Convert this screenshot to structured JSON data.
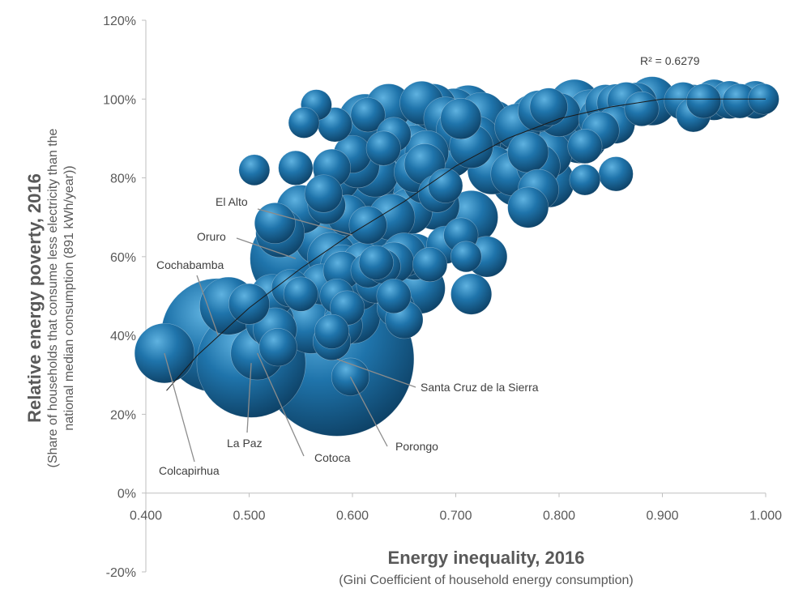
{
  "chart_data": {
    "type": "scatter",
    "subtype": "bubble",
    "xlabel": "Energy inequality, 2016",
    "xlabel_sub": "(Gini Coefficient of household energy consumption)",
    "ylabel": "Relative energy poverty, 2016",
    "ylabel_sub_line1": "(Share of households that consume less electricity than the",
    "ylabel_sub_line2": "national median consumption (891 kWh/year))",
    "xlim": [
      0.4,
      1.0
    ],
    "ylim": [
      -0.2,
      1.2
    ],
    "xticks": [
      0.4,
      0.5,
      0.6,
      0.7,
      0.8,
      0.9,
      1.0
    ],
    "xtick_labels": [
      "0.400",
      "0.500",
      "0.600",
      "0.700",
      "0.800",
      "0.900",
      "1.000"
    ],
    "yticks": [
      -0.2,
      0.0,
      0.2,
      0.4,
      0.6,
      0.8,
      1.0,
      1.2
    ],
    "ytick_labels": [
      "-20%",
      "0%",
      "20%",
      "40%",
      "60%",
      "80%",
      "100%",
      "120%"
    ],
    "grid": false,
    "legend": "none",
    "bubble_color": "#1f6fa3",
    "trendline": {
      "type": "polynomial",
      "r_squared_label": "R² = 0.6279",
      "points": [
        [
          0.42,
          0.26
        ],
        [
          0.45,
          0.35
        ],
        [
          0.5,
          0.47
        ],
        [
          0.55,
          0.57
        ],
        [
          0.6,
          0.66
        ],
        [
          0.65,
          0.74
        ],
        [
          0.7,
          0.83
        ],
        [
          0.75,
          0.9
        ],
        [
          0.8,
          0.95
        ],
        [
          0.85,
          0.98
        ],
        [
          0.9,
          1.0
        ],
        [
          0.95,
          1.0
        ],
        [
          1.0,
          1.0
        ]
      ]
    },
    "labeled_points": [
      {
        "name": "Santa Cruz de la Sierra",
        "x": 0.585,
        "y": 0.34,
        "size": 1.0
      },
      {
        "name": "La Paz",
        "x": 0.502,
        "y": 0.33,
        "size": 0.5
      },
      {
        "name": "Cochabamba",
        "x": 0.47,
        "y": 0.4,
        "size": 0.55
      },
      {
        "name": "El Alto",
        "x": 0.6,
        "y": 0.655,
        "size": 0.44
      },
      {
        "name": "Oruro",
        "x": 0.545,
        "y": 0.595,
        "size": 0.35
      },
      {
        "name": "Cotoca",
        "x": 0.508,
        "y": 0.355,
        "size": 0.12
      },
      {
        "name": "Porongo",
        "x": 0.598,
        "y": 0.295,
        "size": 0.06
      },
      {
        "name": "Colcapirhua",
        "x": 0.418,
        "y": 0.355,
        "size": 0.15
      }
    ],
    "annotations": [
      {
        "text": "El Alto",
        "target": [
          0.6,
          0.655
        ]
      },
      {
        "text": "Oruro",
        "target": [
          0.545,
          0.595
        ]
      },
      {
        "text": "Cochabamba",
        "target": [
          0.47,
          0.4
        ]
      },
      {
        "text": "Santa Cruz de la Sierra",
        "target": [
          0.585,
          0.34
        ]
      },
      {
        "text": "La Paz",
        "target": [
          0.502,
          0.33
        ]
      },
      {
        "text": "Cotoca",
        "target": [
          0.508,
          0.355
        ]
      },
      {
        "text": "Porongo",
        "target": [
          0.598,
          0.295
        ]
      },
      {
        "text": "Colcapirhua",
        "target": [
          0.418,
          0.355
        ]
      }
    ],
    "points": [
      {
        "x": 0.565,
        "y": 0.985,
        "size": 0.04
      },
      {
        "x": 0.553,
        "y": 0.94,
        "size": 0.04
      },
      {
        "x": 0.583,
        "y": 0.935,
        "size": 0.05
      },
      {
        "x": 0.505,
        "y": 0.82,
        "size": 0.04
      },
      {
        "x": 0.545,
        "y": 0.825,
        "size": 0.05
      },
      {
        "x": 0.635,
        "y": 0.98,
        "size": 0.09
      },
      {
        "x": 0.615,
        "y": 0.96,
        "size": 0.05
      },
      {
        "x": 0.612,
        "y": 0.945,
        "size": 0.12
      },
      {
        "x": 0.622,
        "y": 0.94,
        "size": 0.13
      },
      {
        "x": 0.64,
        "y": 0.91,
        "size": 0.05
      },
      {
        "x": 0.655,
        "y": 0.905,
        "size": 0.11
      },
      {
        "x": 0.66,
        "y": 0.875,
        "size": 0.09
      },
      {
        "x": 0.667,
        "y": 0.99,
        "size": 0.08
      },
      {
        "x": 0.678,
        "y": 0.98,
        "size": 0.09
      },
      {
        "x": 0.69,
        "y": 0.95,
        "size": 0.08
      },
      {
        "x": 0.698,
        "y": 0.965,
        "size": 0.1
      },
      {
        "x": 0.712,
        "y": 0.97,
        "size": 0.11
      },
      {
        "x": 0.705,
        "y": 0.95,
        "size": 0.07
      },
      {
        "x": 0.725,
        "y": 0.955,
        "size": 0.1
      },
      {
        "x": 0.735,
        "y": 0.93,
        "size": 0.12
      },
      {
        "x": 0.702,
        "y": 0.92,
        "size": 0.08
      },
      {
        "x": 0.68,
        "y": 0.9,
        "size": 0.1
      },
      {
        "x": 0.69,
        "y": 0.885,
        "size": 0.12
      },
      {
        "x": 0.672,
        "y": 0.865,
        "size": 0.08
      },
      {
        "x": 0.695,
        "y": 0.86,
        "size": 0.09
      },
      {
        "x": 0.72,
        "y": 0.895,
        "size": 0.1
      },
      {
        "x": 0.715,
        "y": 0.88,
        "size": 0.08
      },
      {
        "x": 0.735,
        "y": 0.87,
        "size": 0.15
      },
      {
        "x": 0.745,
        "y": 0.86,
        "size": 0.18
      },
      {
        "x": 0.75,
        "y": 0.84,
        "size": 0.14
      },
      {
        "x": 0.735,
        "y": 0.82,
        "size": 0.1
      },
      {
        "x": 0.755,
        "y": 0.81,
        "size": 0.08
      },
      {
        "x": 0.76,
        "y": 0.795,
        "size": 0.12
      },
      {
        "x": 0.78,
        "y": 0.83,
        "size": 0.08
      },
      {
        "x": 0.79,
        "y": 0.86,
        "size": 0.09
      },
      {
        "x": 0.77,
        "y": 0.865,
        "size": 0.07
      },
      {
        "x": 0.76,
        "y": 0.93,
        "size": 0.09
      },
      {
        "x": 0.775,
        "y": 0.95,
        "size": 0.1
      },
      {
        "x": 0.78,
        "y": 0.97,
        "size": 0.07
      },
      {
        "x": 0.79,
        "y": 0.98,
        "size": 0.06
      },
      {
        "x": 0.8,
        "y": 0.96,
        "size": 0.08
      },
      {
        "x": 0.81,
        "y": 0.94,
        "size": 0.1
      },
      {
        "x": 0.82,
        "y": 0.91,
        "size": 0.14
      },
      {
        "x": 0.815,
        "y": 0.985,
        "size": 0.11
      },
      {
        "x": 0.83,
        "y": 0.965,
        "size": 0.09
      },
      {
        "x": 0.84,
        "y": 0.95,
        "size": 0.08
      },
      {
        "x": 0.845,
        "y": 0.985,
        "size": 0.07
      },
      {
        "x": 0.855,
        "y": 0.99,
        "size": 0.06
      },
      {
        "x": 0.86,
        "y": 0.975,
        "size": 0.08
      },
      {
        "x": 0.865,
        "y": 0.995,
        "size": 0.06
      },
      {
        "x": 0.875,
        "y": 0.99,
        "size": 0.07
      },
      {
        "x": 0.88,
        "y": 0.975,
        "size": 0.05
      },
      {
        "x": 0.89,
        "y": 0.995,
        "size": 0.1
      },
      {
        "x": 0.855,
        "y": 0.935,
        "size": 0.06
      },
      {
        "x": 0.84,
        "y": 0.92,
        "size": 0.06
      },
      {
        "x": 0.825,
        "y": 0.88,
        "size": 0.05
      },
      {
        "x": 0.79,
        "y": 0.79,
        "size": 0.11
      },
      {
        "x": 0.78,
        "y": 0.77,
        "size": 0.07
      },
      {
        "x": 0.77,
        "y": 0.725,
        "size": 0.07
      },
      {
        "x": 0.825,
        "y": 0.795,
        "size": 0.04
      },
      {
        "x": 0.855,
        "y": 0.81,
        "size": 0.05
      },
      {
        "x": 0.92,
        "y": 0.995,
        "size": 0.06
      },
      {
        "x": 0.93,
        "y": 0.985,
        "size": 0.07
      },
      {
        "x": 0.93,
        "y": 0.96,
        "size": 0.05
      },
      {
        "x": 0.95,
        "y": 0.998,
        "size": 0.07
      },
      {
        "x": 0.965,
        "y": 0.998,
        "size": 0.06
      },
      {
        "x": 0.975,
        "y": 0.995,
        "size": 0.05
      },
      {
        "x": 0.99,
        "y": 0.998,
        "size": 0.06
      },
      {
        "x": 0.998,
        "y": 1.0,
        "size": 0.04
      },
      {
        "x": 0.94,
        "y": 0.995,
        "size": 0.05
      },
      {
        "x": 0.6,
        "y": 0.86,
        "size": 0.06
      },
      {
        "x": 0.605,
        "y": 0.83,
        "size": 0.08
      },
      {
        "x": 0.612,
        "y": 0.815,
        "size": 0.1
      },
      {
        "x": 0.622,
        "y": 0.81,
        "size": 0.09
      },
      {
        "x": 0.63,
        "y": 0.875,
        "size": 0.05
      },
      {
        "x": 0.58,
        "y": 0.825,
        "size": 0.06
      },
      {
        "x": 0.585,
        "y": 0.8,
        "size": 0.09
      },
      {
        "x": 0.603,
        "y": 0.785,
        "size": 0.11
      },
      {
        "x": 0.617,
        "y": 0.78,
        "size": 0.1
      },
      {
        "x": 0.64,
        "y": 0.765,
        "size": 0.2
      },
      {
        "x": 0.65,
        "y": 0.745,
        "size": 0.14
      },
      {
        "x": 0.66,
        "y": 0.765,
        "size": 0.12
      },
      {
        "x": 0.67,
        "y": 0.79,
        "size": 0.08
      },
      {
        "x": 0.66,
        "y": 0.815,
        "size": 0.07
      },
      {
        "x": 0.67,
        "y": 0.835,
        "size": 0.07
      },
      {
        "x": 0.682,
        "y": 0.76,
        "size": 0.06
      },
      {
        "x": 0.69,
        "y": 0.78,
        "size": 0.05
      },
      {
        "x": 0.68,
        "y": 0.73,
        "size": 0.1
      },
      {
        "x": 0.655,
        "y": 0.715,
        "size": 0.09
      },
      {
        "x": 0.638,
        "y": 0.7,
        "size": 0.09
      },
      {
        "x": 0.62,
        "y": 0.72,
        "size": 0.12
      },
      {
        "x": 0.615,
        "y": 0.68,
        "size": 0.06
      },
      {
        "x": 0.595,
        "y": 0.705,
        "size": 0.07
      },
      {
        "x": 0.575,
        "y": 0.73,
        "size": 0.06
      },
      {
        "x": 0.572,
        "y": 0.76,
        "size": 0.06
      },
      {
        "x": 0.55,
        "y": 0.72,
        "size": 0.1
      },
      {
        "x": 0.565,
        "y": 0.71,
        "size": 0.13
      },
      {
        "x": 0.525,
        "y": 0.685,
        "size": 0.07
      },
      {
        "x": 0.53,
        "y": 0.66,
        "size": 0.1
      },
      {
        "x": 0.57,
        "y": 0.645,
        "size": 0.12
      },
      {
        "x": 0.58,
        "y": 0.6,
        "size": 0.1
      },
      {
        "x": 0.59,
        "y": 0.575,
        "size": 0.08
      },
      {
        "x": 0.61,
        "y": 0.585,
        "size": 0.07
      },
      {
        "x": 0.615,
        "y": 0.565,
        "size": 0.05
      },
      {
        "x": 0.605,
        "y": 0.545,
        "size": 0.06
      },
      {
        "x": 0.63,
        "y": 0.575,
        "size": 0.05
      },
      {
        "x": 0.64,
        "y": 0.585,
        "size": 0.07
      },
      {
        "x": 0.65,
        "y": 0.605,
        "size": 0.08
      },
      {
        "x": 0.66,
        "y": 0.6,
        "size": 0.09
      },
      {
        "x": 0.675,
        "y": 0.58,
        "size": 0.05
      },
      {
        "x": 0.69,
        "y": 0.63,
        "size": 0.06
      },
      {
        "x": 0.705,
        "y": 0.655,
        "size": 0.05
      },
      {
        "x": 0.715,
        "y": 0.7,
        "size": 0.12
      },
      {
        "x": 0.71,
        "y": 0.6,
        "size": 0.04
      },
      {
        "x": 0.73,
        "y": 0.6,
        "size": 0.07
      },
      {
        "x": 0.715,
        "y": 0.505,
        "size": 0.07
      },
      {
        "x": 0.665,
        "y": 0.52,
        "size": 0.11
      },
      {
        "x": 0.622,
        "y": 0.53,
        "size": 0.06
      },
      {
        "x": 0.605,
        "y": 0.525,
        "size": 0.1
      },
      {
        "x": 0.57,
        "y": 0.53,
        "size": 0.07
      },
      {
        "x": 0.585,
        "y": 0.5,
        "size": 0.05
      },
      {
        "x": 0.55,
        "y": 0.505,
        "size": 0.05
      },
      {
        "x": 0.54,
        "y": 0.52,
        "size": 0.06
      },
      {
        "x": 0.522,
        "y": 0.5,
        "size": 0.08
      },
      {
        "x": 0.5,
        "y": 0.48,
        "size": 0.07
      },
      {
        "x": 0.48,
        "y": 0.475,
        "size": 0.14
      },
      {
        "x": 0.52,
        "y": 0.435,
        "size": 0.1
      },
      {
        "x": 0.525,
        "y": 0.415,
        "size": 0.08
      },
      {
        "x": 0.528,
        "y": 0.37,
        "size": 0.06
      },
      {
        "x": 0.56,
        "y": 0.43,
        "size": 0.15
      },
      {
        "x": 0.59,
        "y": 0.425,
        "size": 0.07
      },
      {
        "x": 0.6,
        "y": 0.45,
        "size": 0.13
      },
      {
        "x": 0.595,
        "y": 0.47,
        "size": 0.05
      },
      {
        "x": 0.58,
        "y": 0.41,
        "size": 0.05
      },
      {
        "x": 0.58,
        "y": 0.385,
        "size": 0.06
      },
      {
        "x": 0.642,
        "y": 0.47,
        "size": 0.06
      },
      {
        "x": 0.65,
        "y": 0.44,
        "size": 0.06
      },
      {
        "x": 0.64,
        "y": 0.5,
        "size": 0.05
      },
      {
        "x": 0.623,
        "y": 0.585,
        "size": 0.05
      },
      {
        "x": 0.59,
        "y": 0.565,
        "size": 0.06
      }
    ]
  }
}
